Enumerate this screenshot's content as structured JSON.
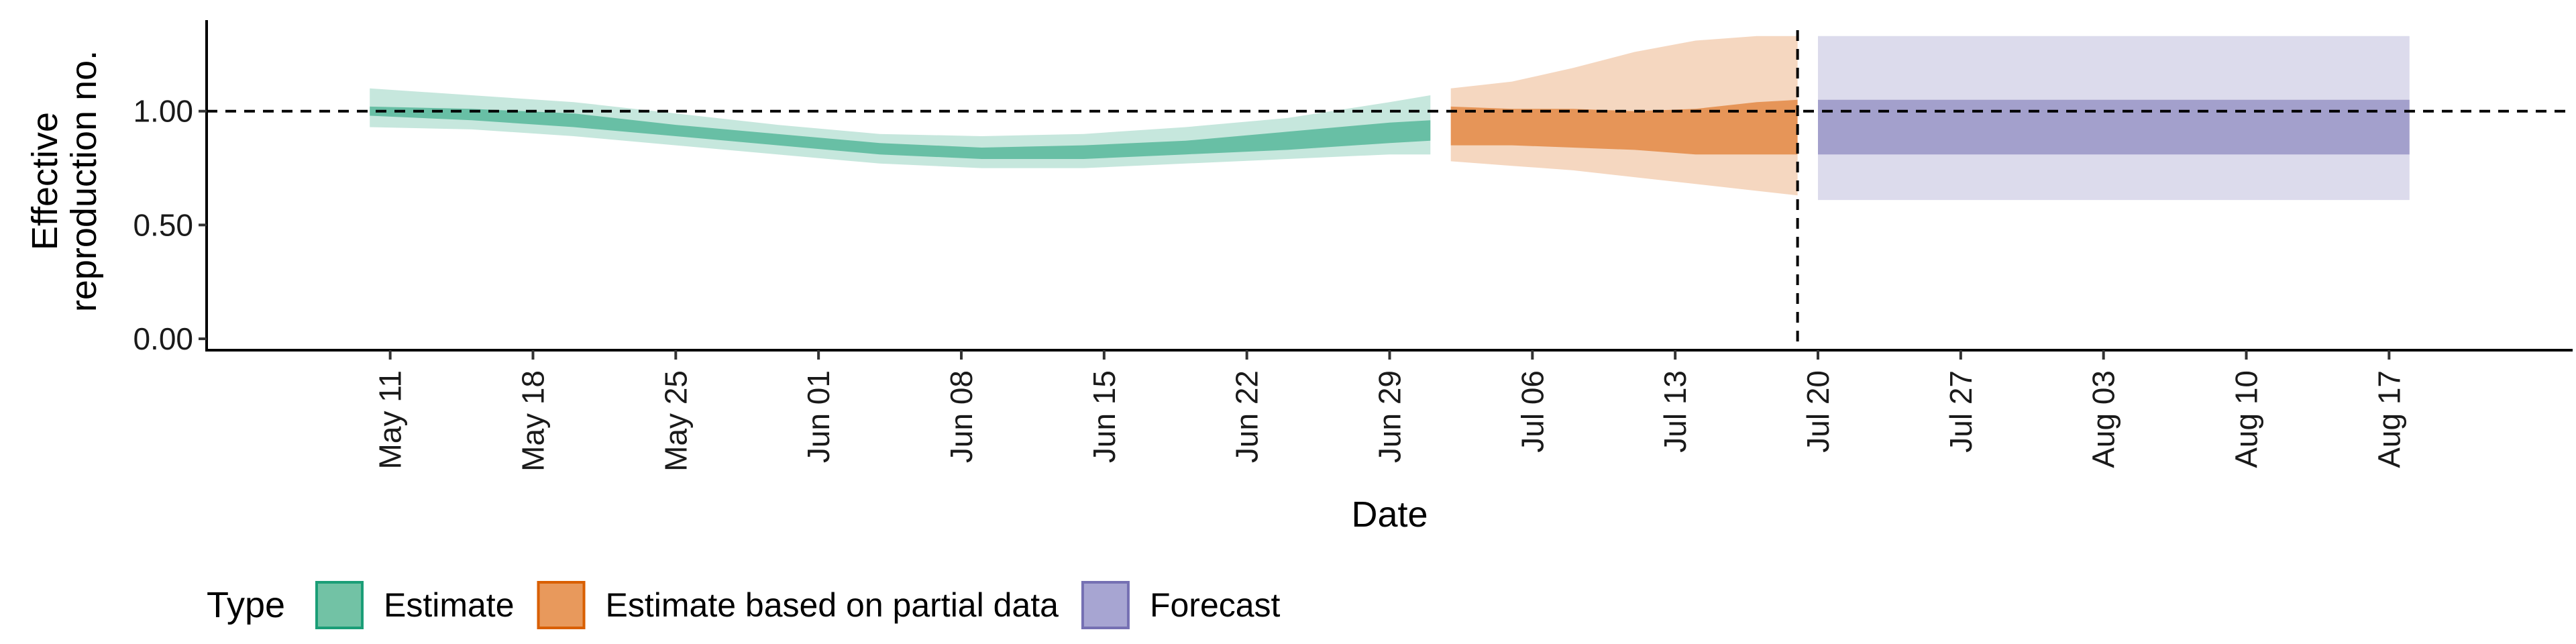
{
  "chart_data": {
    "type": "area",
    "xlabel": "Date",
    "ylabel_lines": [
      "Effective",
      "reproduction no."
    ],
    "y_ticks": [
      "0.00",
      "0.50",
      "1.00"
    ],
    "y_tick_values": [
      0,
      0.5,
      1.0
    ],
    "ylim": [
      -0.05,
      1.4
    ],
    "x_axis": {
      "start_date": "2020-05-02",
      "end_date": "2020-08-26",
      "tick_dates": [
        "2020-05-11",
        "2020-05-18",
        "2020-05-25",
        "2020-06-01",
        "2020-06-08",
        "2020-06-15",
        "2020-06-22",
        "2020-06-29",
        "2020-07-06",
        "2020-07-13",
        "2020-07-20",
        "2020-07-27",
        "2020-08-03",
        "2020-08-10",
        "2020-08-17"
      ],
      "tick_labels": [
        "May 11",
        "May 18",
        "May 25",
        "Jun 01",
        "Jun 08",
        "Jun 15",
        "Jun 22",
        "Jun 29",
        "Jul 06",
        "Jul 13",
        "Jul 20",
        "Jul 27",
        "Aug 03",
        "Aug 10",
        "Aug 17"
      ]
    },
    "reference_hline": 1.0,
    "reference_vline_date": "2020-07-19",
    "legend": {
      "title": "Type",
      "placement": "bottom",
      "items": [
        {
          "label": "Estimate",
          "fill": "#72c2a5",
          "stroke": "#1b9e77"
        },
        {
          "label": "Estimate based on partial data",
          "fill": "#e8995c",
          "stroke": "#d95f02"
        },
        {
          "label": "Forecast",
          "fill": "#a7a5d2",
          "stroke": "#7570b3"
        }
      ]
    },
    "series": [
      {
        "name": "Estimate",
        "color": "#1b9e77",
        "dates": [
          "2020-05-10",
          "2020-05-15",
          "2020-05-20",
          "2020-05-25",
          "2020-05-30",
          "2020-06-04",
          "2020-06-09",
          "2020-06-14",
          "2020-06-19",
          "2020-06-24",
          "2020-06-29",
          "2020-07-01"
        ],
        "median": [
          1.0,
          0.99,
          0.96,
          0.92,
          0.88,
          0.84,
          0.81,
          0.82,
          0.84,
          0.86,
          0.9,
          0.91
        ],
        "lower_50": [
          0.98,
          0.96,
          0.93,
          0.89,
          0.85,
          0.81,
          0.79,
          0.79,
          0.81,
          0.83,
          0.86,
          0.87
        ],
        "upper_50": [
          1.02,
          1.01,
          0.99,
          0.94,
          0.9,
          0.86,
          0.84,
          0.85,
          0.87,
          0.91,
          0.95,
          0.96
        ],
        "lower_90": [
          0.93,
          0.92,
          0.89,
          0.85,
          0.81,
          0.77,
          0.75,
          0.75,
          0.77,
          0.79,
          0.81,
          0.81
        ],
        "upper_90": [
          1.1,
          1.07,
          1.04,
          0.99,
          0.94,
          0.9,
          0.89,
          0.9,
          0.93,
          0.97,
          1.04,
          1.07
        ]
      },
      {
        "name": "Estimate based on partial data",
        "color": "#d95f02",
        "dates": [
          "2020-07-02",
          "2020-07-05",
          "2020-07-08",
          "2020-07-11",
          "2020-07-14",
          "2020-07-17",
          "2020-07-19"
        ],
        "median": [
          0.93,
          0.93,
          0.92,
          0.91,
          0.91,
          0.92,
          0.93
        ],
        "lower_50": [
          0.85,
          0.85,
          0.84,
          0.83,
          0.81,
          0.81,
          0.81
        ],
        "upper_50": [
          1.02,
          1.01,
          1.01,
          1.0,
          1.01,
          1.04,
          1.05
        ],
        "lower_90": [
          0.78,
          0.76,
          0.74,
          0.71,
          0.68,
          0.65,
          0.63
        ],
        "upper_90": [
          1.1,
          1.13,
          1.19,
          1.26,
          1.31,
          1.33,
          1.33
        ]
      },
      {
        "name": "Forecast",
        "color": "#7570b3",
        "dates": [
          "2020-07-20",
          "2020-08-18"
        ],
        "median": [
          0.93,
          0.93
        ],
        "lower_50": [
          0.81,
          0.81
        ],
        "upper_50": [
          1.05,
          1.05
        ],
        "lower_90": [
          0.61,
          0.61
        ],
        "upper_90": [
          1.33,
          1.33
        ]
      }
    ]
  }
}
